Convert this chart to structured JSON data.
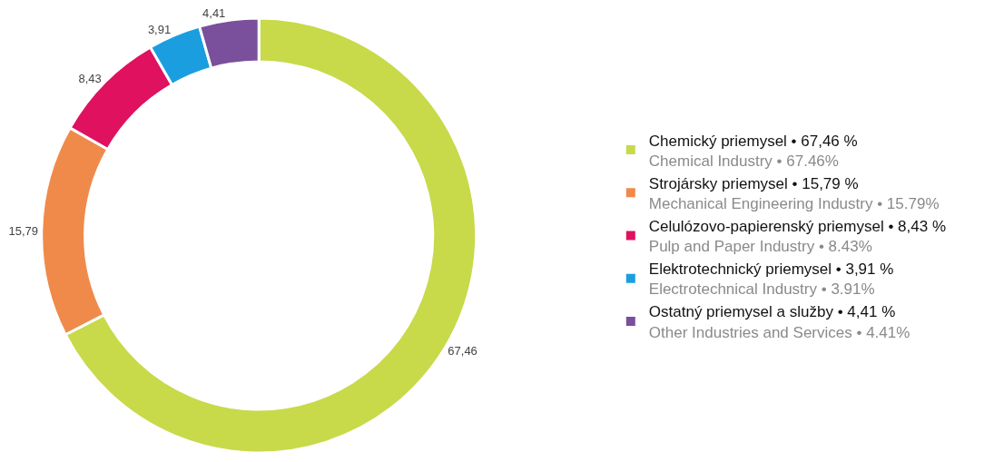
{
  "chart_data": {
    "type": "donut",
    "categories": [
      "Chemický priemysel • 67,46 %\nChemical Industry • 67.46%",
      "Strojársky priemysel • 15,79 %\nMechanical Engineering Industry • 15.79%",
      "Celulózovo-papierenský priemysel • 8,43 %\nPulp and Paper Industry • 8.43%",
      "Elektrotechnický priemysel • 3,91 %\nElectrotechnical Industry • 3.91%",
      "Ostatný priemysel a služby • 4,41 %\nOther Industries and Services • 4.41%"
    ],
    "values": [
      67.46,
      15.79,
      8.43,
      3.91,
      4.41
    ],
    "value_labels": [
      "67,46",
      "15,79",
      "8,43",
      "3,91",
      "4,41"
    ],
    "colors": [
      "#c8d94a",
      "#f08a4b",
      "#e0115f",
      "#1a9ee0",
      "#7a4f9c"
    ],
    "legend": "right"
  }
}
